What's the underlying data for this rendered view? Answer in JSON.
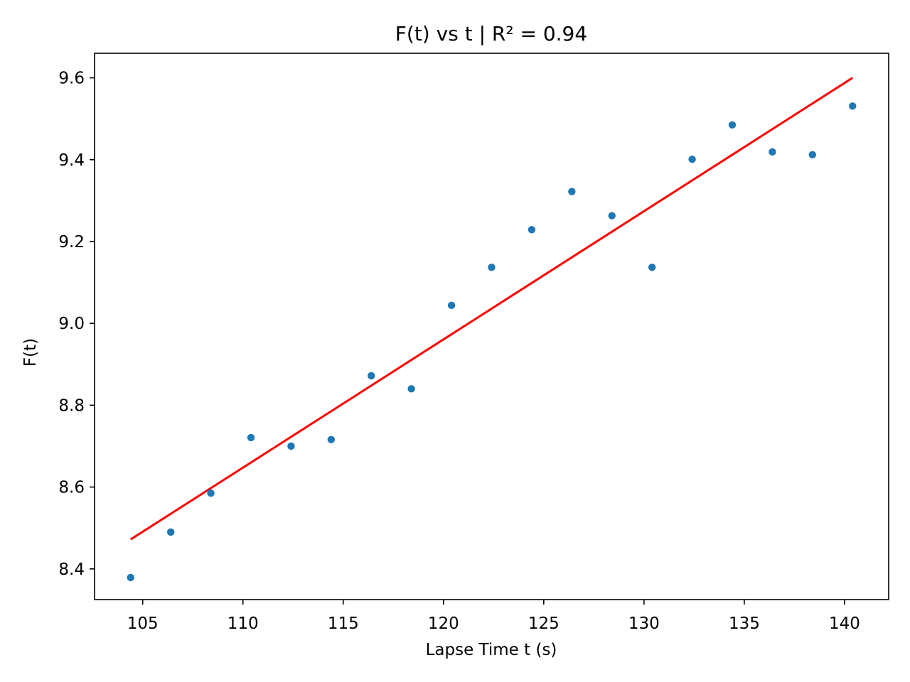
{
  "chart_data": {
    "type": "scatter",
    "title": "F(t) vs t | R² = 0.94",
    "xlabel": "Lapse Time t (s)",
    "ylabel": "F(t)",
    "xlim": [
      102.6,
      142.2
    ],
    "ylim": [
      8.325,
      9.66
    ],
    "xticks": [
      105,
      110,
      115,
      120,
      125,
      130,
      135,
      140
    ],
    "yticks": [
      8.4,
      8.6,
      8.8,
      9.0,
      9.2,
      9.4,
      9.6
    ],
    "xtick_labels": [
      "105",
      "110",
      "115",
      "120",
      "125",
      "130",
      "135",
      "140"
    ],
    "ytick_labels": [
      "8.4",
      "8.6",
      "8.8",
      "9.0",
      "9.2",
      "9.4",
      "9.6"
    ],
    "grid": false,
    "series": [
      {
        "kind": "points",
        "color": "#1f77b4",
        "x": [
          104.4,
          106.4,
          108.4,
          110.4,
          112.4,
          114.4,
          116.4,
          118.4,
          120.4,
          122.4,
          124.4,
          126.4,
          128.4,
          130.4,
          132.4,
          134.4,
          136.4,
          138.4,
          140.4
        ],
        "y": [
          8.379,
          8.49,
          8.585,
          8.721,
          8.7,
          8.716,
          8.872,
          8.84,
          9.044,
          9.137,
          9.229,
          9.322,
          9.263,
          9.137,
          9.401,
          9.485,
          9.419,
          9.412,
          9.531
        ]
      },
      {
        "kind": "fit-line",
        "color": "#ff0000",
        "x": [
          104.4,
          140.4
        ],
        "y": [
          8.472,
          9.6
        ]
      }
    ]
  }
}
